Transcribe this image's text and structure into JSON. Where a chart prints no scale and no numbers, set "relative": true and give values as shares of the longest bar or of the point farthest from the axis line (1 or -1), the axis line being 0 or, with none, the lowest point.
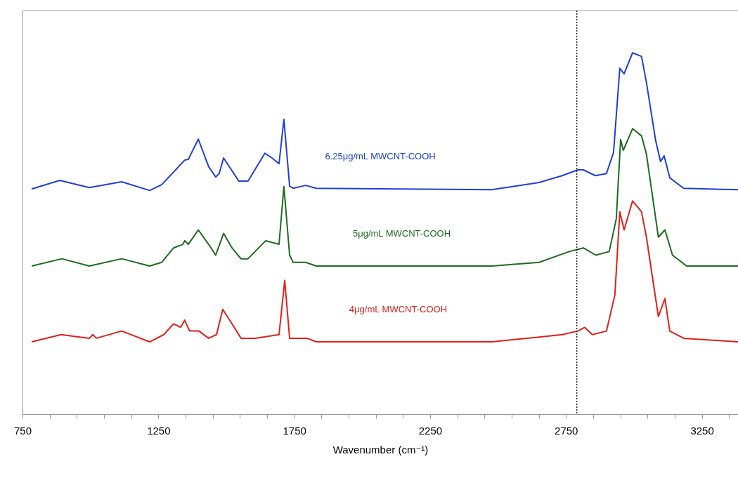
{
  "chart_data": {
    "type": "line",
    "relative": true,
    "xlabel": "Wavenumber (cm⁻¹)",
    "xlim": [
      750,
      3383
    ],
    "xticks": [
      750,
      {
        "value": 850,
        "label": null
      },
      {
        "value": 950,
        "label": null
      },
      {
        "value": 1050,
        "label": null
      },
      {
        "value": 1150,
        "label": null
      },
      1250,
      {
        "value": 1350,
        "label": null
      },
      {
        "value": 1450,
        "label": null
      },
      {
        "value": 1550,
        "label": null
      },
      {
        "value": 1650,
        "label": null
      },
      1750,
      {
        "value": 1850,
        "label": null
      },
      {
        "value": 1950,
        "label": null
      },
      {
        "value": 2050,
        "label": null
      },
      {
        "value": 2150,
        "label": null
      },
      2250,
      {
        "value": 2350,
        "label": null
      },
      {
        "value": 2450,
        "label": null
      },
      {
        "value": 2550,
        "label": null
      },
      {
        "value": 2650,
        "label": null
      },
      2750,
      {
        "value": 2850,
        "label": null
      },
      {
        "value": 2950,
        "label": null
      },
      {
        "value": 3050,
        "label": null
      },
      {
        "value": 3150,
        "label": null
      },
      3250,
      {
        "value": 3350,
        "label": null
      }
    ],
    "grid": false,
    "legend": false,
    "marker": "none",
    "line_style": "solid",
    "ref_lines": [
      {
        "axis": "x",
        "value": 2790,
        "color": "#000000",
        "line_style": "dotted"
      }
    ],
    "series": [
      {
        "name": "6.25μg/mL MWCNT-COOH",
        "color": "#1f3fd8",
        "x": [
          784,
          887,
          996,
          1115,
          1218,
          1262,
          1306,
          1347,
          1360,
          1397,
          1435,
          1461,
          1474,
          1490,
          1546,
          1580,
          1642,
          1668,
          1694,
          1712,
          1733,
          1746,
          1792,
          1831,
          2477,
          2651,
          2736,
          2793,
          2814,
          2858,
          2899,
          2925,
          2948,
          2964,
          2995,
          3028,
          3046,
          3080,
          3098,
          3111,
          3132,
          3183,
          3383
        ],
        "values": [
          0.623,
          0.647,
          0.627,
          0.643,
          0.619,
          0.635,
          0.67,
          0.703,
          0.705,
          0.761,
          0.685,
          0.656,
          0.666,
          0.709,
          0.645,
          0.645,
          0.722,
          0.709,
          0.693,
          0.816,
          0.631,
          0.625,
          0.633,
          0.625,
          0.621,
          0.641,
          0.66,
          0.676,
          0.676,
          0.66,
          0.666,
          0.724,
          0.957,
          0.942,
          1.0,
          0.99,
          0.918,
          0.757,
          0.699,
          0.715,
          0.654,
          0.625,
          0.621
        ]
      },
      {
        "name": "5μg/mL MWCNT-COOH",
        "color": "#1e6b1e",
        "x": [
          784,
          895,
          996,
          1115,
          1218,
          1262,
          1306,
          1340,
          1347,
          1360,
          1397,
          1435,
          1461,
          1490,
          1521,
          1554,
          1580,
          1645,
          1694,
          1712,
          1733,
          1746,
          1792,
          1831,
          2477,
          2651,
          2762,
          2814,
          2860,
          2909,
          2935,
          2951,
          2961,
          2995,
          3028,
          3046,
          3090,
          3114,
          3142,
          3194,
          3383
        ],
        "values": [
          0.41,
          0.43,
          0.41,
          0.43,
          0.41,
          0.42,
          0.46,
          0.47,
          0.48,
          0.47,
          0.51,
          0.47,
          0.44,
          0.5,
          0.46,
          0.43,
          0.43,
          0.48,
          0.47,
          0.63,
          0.44,
          0.42,
          0.42,
          0.41,
          0.41,
          0.42,
          0.45,
          0.46,
          0.44,
          0.45,
          0.54,
          0.76,
          0.73,
          0.79,
          0.77,
          0.72,
          0.49,
          0.51,
          0.44,
          0.41,
          0.41
        ]
      },
      {
        "name": "4μg/mL MWCNT-COOH",
        "color": "#e0201c",
        "x": [
          784,
          892,
          996,
          1009,
          1022,
          1115,
          1218,
          1270,
          1306,
          1332,
          1347,
          1365,
          1399,
          1435,
          1464,
          1487,
          1521,
          1554,
          1606,
          1694,
          1715,
          1733,
          1797,
          1831,
          2477,
          2736,
          2793,
          2819,
          2847,
          2899,
          2930,
          2948,
          2964,
          2995,
          3028,
          3046,
          3090,
          3114,
          3132,
          3183,
          3383
        ],
        "values": [
          0.2,
          0.22,
          0.21,
          0.22,
          0.21,
          0.23,
          0.2,
          0.22,
          0.25,
          0.24,
          0.26,
          0.23,
          0.23,
          0.21,
          0.22,
          0.29,
          0.25,
          0.21,
          0.21,
          0.22,
          0.37,
          0.21,
          0.21,
          0.2,
          0.2,
          0.22,
          0.23,
          0.24,
          0.22,
          0.23,
          0.33,
          0.56,
          0.51,
          0.59,
          0.56,
          0.49,
          0.27,
          0.32,
          0.23,
          0.21,
          0.2
        ]
      }
    ]
  }
}
